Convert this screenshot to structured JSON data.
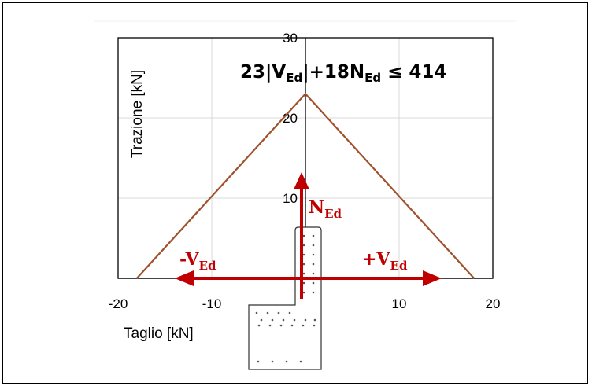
{
  "chart_data": {
    "type": "line",
    "xlabel": "Taglio [kN]",
    "ylabel": "Trazione [kN]",
    "xlim": [
      -20,
      20
    ],
    "ylim": [
      0,
      30
    ],
    "x_ticks": [
      -20,
      -10,
      10,
      20
    ],
    "y_ticks": [
      10,
      20,
      30
    ],
    "grid": true,
    "series": [
      {
        "x": [
          -18,
          0,
          18
        ],
        "y": [
          0,
          23,
          0
        ],
        "color": "#a0522d"
      }
    ],
    "annotation": {
      "part1": "23|V",
      "sub1": "Ed",
      "part2": "|+18N",
      "sub2": "Ed",
      "part3": " ≤ 414"
    },
    "forces": {
      "normal": {
        "main": "N",
        "sub": "Ed"
      },
      "shear_negative": {
        "main": "-V",
        "sub": "Ed"
      },
      "shear_positive": {
        "main": "+V",
        "sub": "Ed"
      }
    },
    "force_color": "#c00000"
  }
}
